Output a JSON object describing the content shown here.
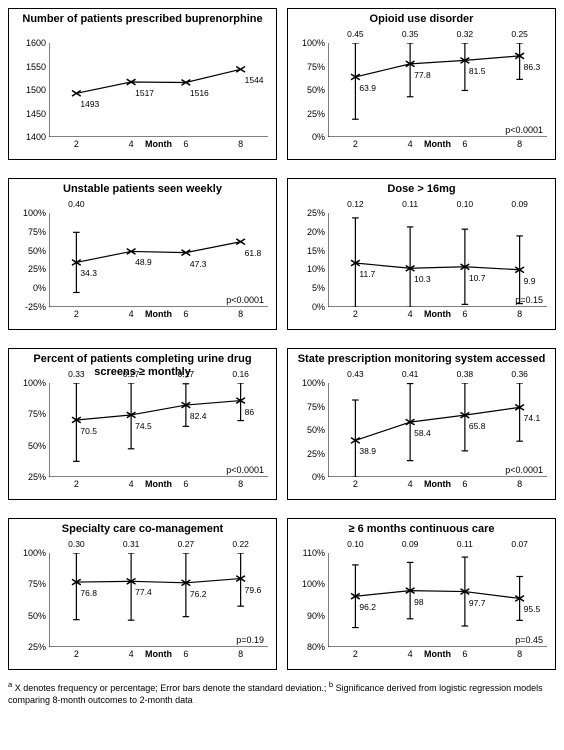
{
  "layout": {
    "cols": 2,
    "rows": 4,
    "panel_marker": "x",
    "marker_size": 5,
    "line_color": "#000000",
    "background": "#ffffff",
    "border_color": "#000000",
    "font_family": "Arial"
  },
  "x_axis": {
    "title": "Month",
    "ticks": [
      2,
      4,
      6,
      8
    ]
  },
  "panels": [
    {
      "title": "Number of patients prescribed buprenorphine",
      "ylim": [
        1400,
        1600
      ],
      "ytick_step": 50,
      "yformat": "int",
      "values": [
        1493,
        1517,
        1516,
        1544
      ],
      "errors": null,
      "pvalue": null,
      "value_label_pos": "below"
    },
    {
      "title": "Opioid use disorder",
      "ylim": [
        0,
        100
      ],
      "ytick_step": 25,
      "yformat": "pct",
      "values": [
        63.9,
        77.8,
        81.5,
        86.3
      ],
      "errors": [
        0.45,
        0.35,
        0.32,
        0.25
      ],
      "pvalue": "p<0.0001",
      "value_label_pos": "below"
    },
    {
      "title": "Unstable patients seen weekly",
      "ylim": [
        -25,
        100
      ],
      "ytick_step": 25,
      "yformat": "pct",
      "values": [
        34.3,
        48.9,
        47.3,
        61.8
      ],
      "errors": [
        0.4,
        null,
        null,
        null
      ],
      "pvalue": "p<0.0001",
      "value_label_pos": "below"
    },
    {
      "title": "Dose > 16mg",
      "ylim": [
        0,
        25
      ],
      "ytick_step": 5,
      "yformat": "pct",
      "values": [
        11.7,
        10.3,
        10.7,
        9.9
      ],
      "errors": [
        0.12,
        0.11,
        0.1,
        0.09
      ],
      "pvalue": "p=0.15",
      "value_label_pos": "below"
    },
    {
      "title": "Percent of patients completing urine drug screens ≥ monthly",
      "ylim": [
        25,
        100
      ],
      "ytick_step": 25,
      "yformat": "pct",
      "values": [
        70.5,
        74.5,
        82.4,
        86.0
      ],
      "errors": [
        0.33,
        0.27,
        0.17,
        0.16
      ],
      "pvalue": "p<0.0001",
      "value_label_pos": "below"
    },
    {
      "title": "State prescription monitoring system accessed",
      "ylim": [
        0,
        100
      ],
      "ytick_step": 25,
      "yformat": "pct",
      "values": [
        38.9,
        58.4,
        65.8,
        74.1
      ],
      "errors": [
        0.43,
        0.41,
        0.38,
        0.36
      ],
      "pvalue": "p<0.0001",
      "value_label_pos": "below"
    },
    {
      "title": "Specialty care co-management",
      "ylim": [
        25,
        100
      ],
      "ytick_step": 25,
      "yformat": "pct",
      "values": [
        76.8,
        77.4,
        76.2,
        79.6
      ],
      "errors": [
        0.3,
        0.31,
        0.27,
        0.22
      ],
      "pvalue": "p=0.19",
      "value_label_pos": "below"
    },
    {
      "title": "≥ 6 months continuous care",
      "ylim": [
        80,
        110
      ],
      "ytick_step": 10,
      "yformat": "pct",
      "values": [
        96.2,
        98.0,
        97.7,
        95.5
      ],
      "errors": [
        0.1,
        0.09,
        0.11,
        0.07
      ],
      "pvalue": "p=0.45",
      "value_label_pos": "below"
    }
  ],
  "footnote_a": "X denotes frequency or percentage; Error bars denote the standard deviation.;",
  "footnote_b": "Significance derived from logistic regression models comparing 8-month outcomes to 2-month data"
}
